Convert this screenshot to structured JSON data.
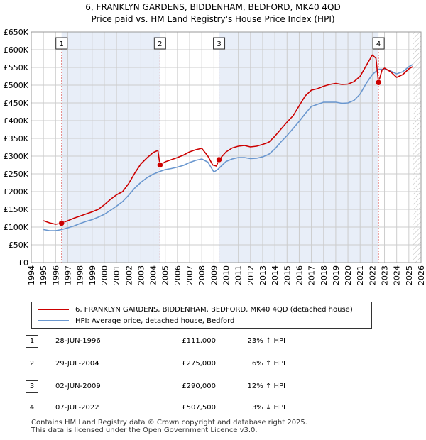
{
  "title_line1": "6, FRANKLYN GARDENS, BIDDENHAM, BEDFORD, MK40 4QD",
  "title_line2": "Price paid vs. HM Land Registry's House Price Index (HPI)",
  "legend": {
    "property_label": "6, FRANKLYN GARDENS, BIDDENHAM, BEDFORD, MK40 4QD (detached house)",
    "hpi_label": "HPI: Average price, detached house, Bedford"
  },
  "colors": {
    "property": "#cc0000",
    "hpi": "#6a97cf",
    "shade": "#e8eef8",
    "grid": "#cccccc"
  },
  "sales": [
    {
      "num": "1",
      "date": "28-JUN-1996",
      "price": "£111,000",
      "hpi": "23% ↑ HPI"
    },
    {
      "num": "2",
      "date": "29-JUL-2004",
      "price": "£275,000",
      "hpi": "6% ↑ HPI"
    },
    {
      "num": "3",
      "date": "02-JUN-2009",
      "price": "£290,000",
      "hpi": "12% ↑ HPI"
    },
    {
      "num": "4",
      "date": "07-JUL-2022",
      "price": "£507,500",
      "hpi": "3% ↓ HPI"
    }
  ],
  "footer_line1": "Contains HM Land Registry data © Crown copyright and database right 2025.",
  "footer_line2": "This data is licensed under the Open Government Licence v3.0.",
  "chart_data": {
    "type": "line",
    "title": "6, FRANKLYN GARDENS, BIDDENHAM, BEDFORD, MK40 4QD",
    "subtitle": "Price paid vs. HM Land Registry's House Price Index (HPI)",
    "xlim": [
      1994,
      2026
    ],
    "ylim": [
      0,
      650000
    ],
    "xticks": [
      "1994",
      "1995",
      "1996",
      "1997",
      "1998",
      "1999",
      "2000",
      "2001",
      "2002",
      "2003",
      "2004",
      "2005",
      "2006",
      "2007",
      "2008",
      "2009",
      "2010",
      "2011",
      "2012",
      "2013",
      "2014",
      "2015",
      "2016",
      "2017",
      "2018",
      "2019",
      "2020",
      "2021",
      "2022",
      "2023",
      "2024",
      "2025",
      "2026"
    ],
    "yticks": [
      {
        "value": 0,
        "label": "£0"
      },
      {
        "value": 50000,
        "label": "£50K"
      },
      {
        "value": 100000,
        "label": "£100K"
      },
      {
        "value": 150000,
        "label": "£150K"
      },
      {
        "value": 200000,
        "label": "£200K"
      },
      {
        "value": 250000,
        "label": "£250K"
      },
      {
        "value": 300000,
        "label": "£300K"
      },
      {
        "value": 350000,
        "label": "£350K"
      },
      {
        "value": 400000,
        "label": "£400K"
      },
      {
        "value": 450000,
        "label": "£450K"
      },
      {
        "value": 500000,
        "label": "£500K"
      },
      {
        "value": 550000,
        "label": "£550K"
      },
      {
        "value": 600000,
        "label": "£600K"
      },
      {
        "value": 650000,
        "label": "£650K"
      }
    ],
    "shaded_ranges": [
      [
        1996.49,
        2004.57
      ],
      [
        2009.42,
        2022.51
      ]
    ],
    "hatched_after": 2025.3,
    "sale_points": [
      {
        "num": "1",
        "x": 1996.49,
        "y": 111000
      },
      {
        "num": "2",
        "x": 2004.57,
        "y": 275000
      },
      {
        "num": "3",
        "x": 2009.42,
        "y": 290000
      },
      {
        "num": "4",
        "x": 2022.51,
        "y": 507500
      }
    ],
    "series": [
      {
        "name": "6, FRANKLYN GARDENS, BIDDENHAM, BEDFORD, MK40 4QD (detached house)",
        "x": [
          1995.0,
          1995.5,
          1996.0,
          1996.49,
          1997.0,
          1997.5,
          1998.0,
          1998.5,
          1999.0,
          1999.5,
          2000.0,
          2000.5,
          2001.0,
          2001.5,
          2002.0,
          2002.5,
          2003.0,
          2003.5,
          2004.0,
          2004.4,
          2004.57,
          2005.0,
          2005.5,
          2006.0,
          2006.5,
          2007.0,
          2007.5,
          2008.0,
          2008.5,
          2008.9,
          2009.2,
          2009.42,
          2010.0,
          2010.5,
          2011.0,
          2011.5,
          2012.0,
          2012.5,
          2013.0,
          2013.5,
          2014.0,
          2014.5,
          2015.0,
          2015.5,
          2016.0,
          2016.5,
          2017.0,
          2017.5,
          2018.0,
          2018.5,
          2019.0,
          2019.5,
          2020.0,
          2020.5,
          2021.0,
          2021.5,
          2022.0,
          2022.3,
          2022.51,
          2022.8,
          2023.0,
          2023.5,
          2024.0,
          2024.5,
          2025.0,
          2025.3
        ],
        "values": [
          118000,
          112000,
          108000,
          111000,
          118000,
          125000,
          131000,
          137000,
          143000,
          150000,
          163000,
          178000,
          191000,
          200000,
          223000,
          252000,
          278000,
          295000,
          310000,
          316000,
          275000,
          284000,
          290000,
          296000,
          303000,
          312000,
          318000,
          322000,
          300000,
          275000,
          272000,
          290000,
          312000,
          323000,
          328000,
          330000,
          326000,
          328000,
          333000,
          339000,
          356000,
          376000,
          396000,
          414000,
          442000,
          470000,
          486000,
          490000,
          497000,
          502000,
          505000,
          502000,
          503000,
          510000,
          525000,
          555000,
          585000,
          576000,
          507500,
          543000,
          548000,
          538000,
          522000,
          530000,
          546000,
          552000
        ]
      },
      {
        "name": "HPI: Average price, detached house, Bedford",
        "x": [
          1995.0,
          1995.5,
          1996.0,
          1996.5,
          1997.0,
          1997.5,
          1998.0,
          1998.5,
          1999.0,
          1999.5,
          2000.0,
          2000.5,
          2001.0,
          2001.5,
          2002.0,
          2002.5,
          2003.0,
          2003.5,
          2004.0,
          2004.5,
          2005.0,
          2005.5,
          2006.0,
          2006.5,
          2007.0,
          2007.5,
          2008.0,
          2008.5,
          2009.0,
          2009.3,
          2009.6,
          2010.0,
          2010.5,
          2011.0,
          2011.5,
          2012.0,
          2012.5,
          2013.0,
          2013.5,
          2014.0,
          2014.5,
          2015.0,
          2015.5,
          2016.0,
          2016.5,
          2017.0,
          2017.5,
          2018.0,
          2018.5,
          2019.0,
          2019.5,
          2020.0,
          2020.5,
          2021.0,
          2021.5,
          2022.0,
          2022.5,
          2023.0,
          2023.5,
          2024.0,
          2024.5,
          2025.0,
          2025.3
        ],
        "values": [
          93000,
          90000,
          90000,
          93000,
          98000,
          103000,
          110000,
          116000,
          121000,
          128000,
          136000,
          147000,
          159000,
          172000,
          190000,
          210000,
          226000,
          239000,
          249000,
          256000,
          262000,
          265000,
          269000,
          274000,
          282000,
          288000,
          292000,
          283000,
          255000,
          262000,
          272000,
          285000,
          292000,
          296000,
          296000,
          293000,
          294000,
          298000,
          305000,
          320000,
          340000,
          358000,
          378000,
          398000,
          420000,
          440000,
          446000,
          452000,
          452000,
          452000,
          449000,
          450000,
          457000,
          475000,
          505000,
          530000,
          545000,
          545000,
          540000,
          532000,
          538000,
          552000,
          558000
        ]
      }
    ]
  }
}
